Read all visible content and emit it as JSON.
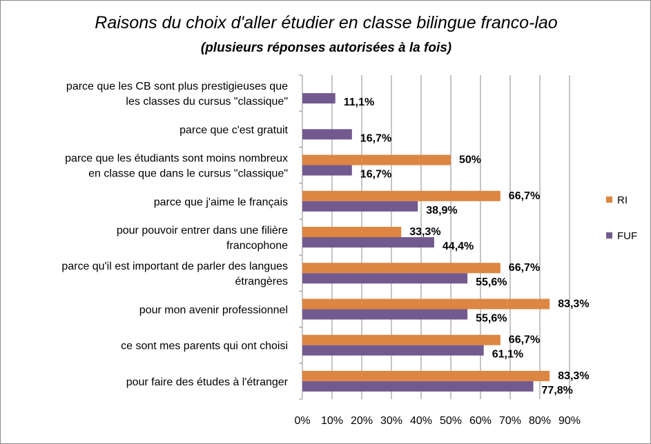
{
  "chart_data": {
    "type": "bar",
    "orientation": "horizontal",
    "title": "Raisons du choix d'aller étudier en classe bilingue franco-lao",
    "subtitle": "(plusieurs réponses autorisées à la fois)",
    "categories": [
      [
        "parce que les CB sont plus prestigieuses que",
        "les classes du cursus \"classique\""
      ],
      [
        "parce que c'est gratuit"
      ],
      [
        "parce que les étudiants sont moins nombreux",
        "en classe que dans le cursus \"classique\""
      ],
      [
        "parce que j'aime le français"
      ],
      [
        "pour pouvoir entrer dans une filière",
        "francophone"
      ],
      [
        "parce qu'il est important de parler des langues",
        "étrangères"
      ],
      [
        "pour mon avenir professionnel"
      ],
      [
        "ce sont mes parents qui ont choisi"
      ],
      [
        "pour faire des études à l'étranger"
      ]
    ],
    "series": [
      {
        "name": "RI",
        "color": "#dd8641",
        "values": [
          null,
          null,
          50,
          66.7,
          33.3,
          66.7,
          83.3,
          66.7,
          83.3
        ],
        "labels": [
          "",
          "",
          "50%",
          "66,7%",
          "33,3%",
          "66,7%",
          "83,3%",
          "66,7%",
          "83,3%"
        ]
      },
      {
        "name": "FUF",
        "color": "#725a8f",
        "values": [
          11.1,
          16.7,
          16.7,
          38.9,
          44.4,
          55.6,
          55.6,
          61.1,
          77.8
        ],
        "labels": [
          "11,1%",
          "16,7%",
          "16,7%",
          "38,9%",
          "44,4%",
          "55,6%",
          "55,6%",
          "61,1%",
          "77,8%"
        ]
      }
    ],
    "xlim": [
      0,
      90
    ],
    "xticks": [
      "0%",
      "10%",
      "20%",
      "30%",
      "40%",
      "50%",
      "60%",
      "70%",
      "80%",
      "90%"
    ],
    "grid": true,
    "legend": "right"
  }
}
